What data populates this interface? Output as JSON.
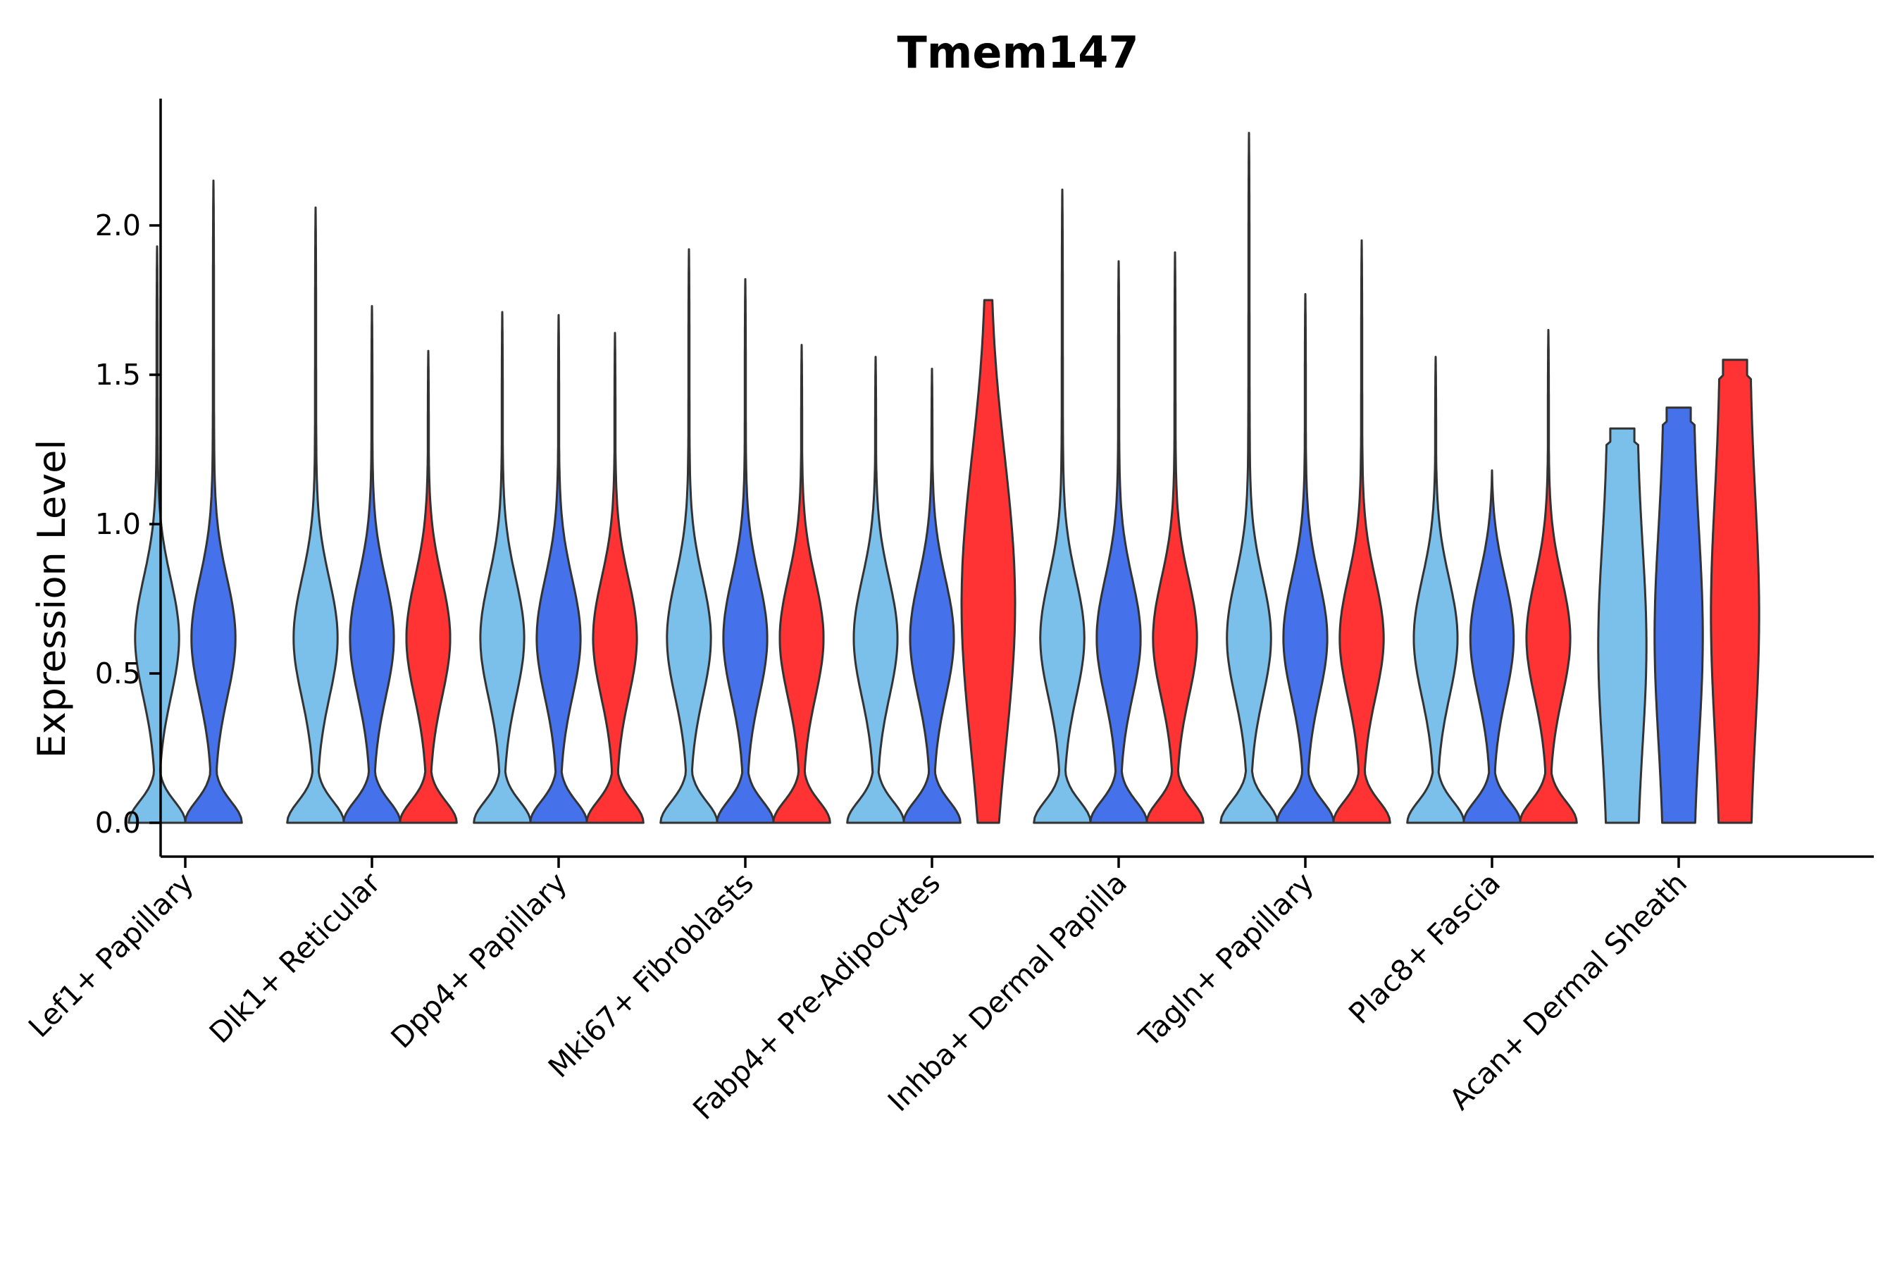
{
  "chart_data": {
    "type": "violin",
    "title": "Tmem147",
    "xlabel": "",
    "ylabel": "Expression Level",
    "ylim": [
      -0.12,
      2.4
    ],
    "yticks": [
      0.0,
      0.5,
      1.0,
      1.5,
      2.0
    ],
    "ytick_labels": [
      "0.0",
      "0.5",
      "1.0",
      "1.5",
      "2.0"
    ],
    "colors": {
      "light": "#7BBFEB",
      "blue": "#4571EB",
      "red": "#FF3333"
    },
    "groups": [
      {
        "name": "Lef1+ Papillary",
        "violins": [
          {
            "color": "light",
            "max": 1.93,
            "shape": "bimodal"
          },
          {
            "color": "blue",
            "max": 2.15,
            "shape": "bimodal"
          }
        ]
      },
      {
        "name": "Dlk1+ Reticular",
        "violins": [
          {
            "color": "light",
            "max": 2.06,
            "shape": "bimodal"
          },
          {
            "color": "blue",
            "max": 1.73,
            "shape": "bimodal"
          },
          {
            "color": "red",
            "max": 1.58,
            "shape": "bimodal"
          }
        ]
      },
      {
        "name": "Dpp4+ Papillary",
        "violins": [
          {
            "color": "light",
            "max": 1.71,
            "shape": "bimodal"
          },
          {
            "color": "blue",
            "max": 1.7,
            "shape": "bimodal"
          },
          {
            "color": "red",
            "max": 1.64,
            "shape": "bimodal"
          }
        ]
      },
      {
        "name": "Mki67+ Fibroblasts",
        "violins": [
          {
            "color": "light",
            "max": 1.92,
            "shape": "bimodal"
          },
          {
            "color": "blue",
            "max": 1.82,
            "shape": "bimodal"
          },
          {
            "color": "red",
            "max": 1.6,
            "shape": "bimodal"
          }
        ]
      },
      {
        "name": "Fabp4+ Pre-Adipocytes",
        "violins": [
          {
            "color": "light",
            "max": 1.56,
            "shape": "bimodal"
          },
          {
            "color": "blue",
            "max": 1.52,
            "shape": "bimodal"
          },
          {
            "color": "red",
            "max": 1.75,
            "shape": "broad"
          }
        ]
      },
      {
        "name": "Inhba+ Dermal Papilla",
        "violins": [
          {
            "color": "light",
            "max": 2.12,
            "shape": "bimodal"
          },
          {
            "color": "blue",
            "max": 1.88,
            "shape": "bimodal"
          },
          {
            "color": "red",
            "max": 1.91,
            "shape": "bimodal"
          }
        ]
      },
      {
        "name": "Tagln+ Papillary",
        "violins": [
          {
            "color": "light",
            "max": 2.31,
            "shape": "bimodal"
          },
          {
            "color": "blue",
            "max": 1.77,
            "shape": "bimodal"
          },
          {
            "color": "red",
            "max": 1.95,
            "shape": "bimodal"
          }
        ]
      },
      {
        "name": "Plac8+ Fascia",
        "violins": [
          {
            "color": "light",
            "max": 1.56,
            "shape": "bimodal"
          },
          {
            "color": "blue",
            "max": 1.18,
            "shape": "bimodal"
          },
          {
            "color": "red",
            "max": 1.65,
            "shape": "bimodal"
          }
        ]
      },
      {
        "name": "Acan+ Dermal Sheath",
        "violins": [
          {
            "color": "light",
            "max": 1.32,
            "shape": "flat"
          },
          {
            "color": "blue",
            "max": 1.39,
            "shape": "flat"
          },
          {
            "color": "red",
            "max": 1.55,
            "shape": "flat"
          }
        ]
      }
    ]
  }
}
